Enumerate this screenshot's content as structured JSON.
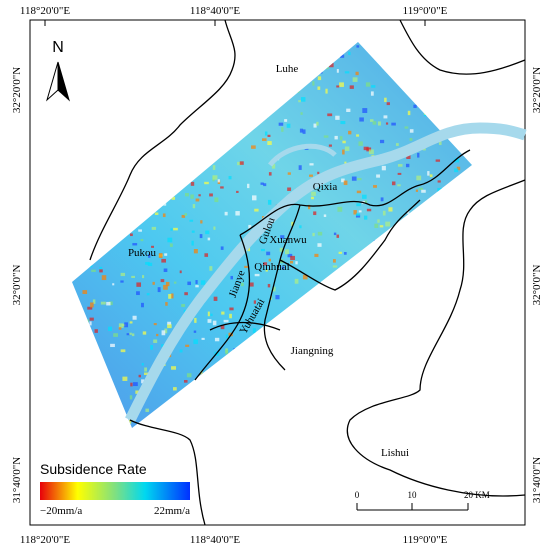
{
  "map": {
    "graticule": {
      "top": [
        "118°20'0\"E",
        "118°40'0\"E",
        "119°0'0\"E"
      ],
      "bottom": [
        "118°20'0\"E",
        "118°40'0\"E",
        "119°0'0\"E"
      ],
      "left": [
        "32°20'0\"N",
        "32°0'0\"N",
        "31°40'0\"N"
      ],
      "right": [
        "32°20'0\"N",
        "32°0'0\"N",
        "31°40'0\"N"
      ]
    },
    "districts": [
      "Luhe",
      "Qixia",
      "Xuanwu",
      "Qinhuai",
      "Pukou",
      "Jiangning",
      "Lishui",
      "Gulou",
      "Jianye",
      "Yuhuatai"
    ],
    "legend": {
      "title": "Subsidence Rate",
      "min_label": "−20mm/a",
      "max_label": "22mm/a"
    },
    "scale_bar": {
      "labels": [
        "0",
        "10",
        "20 KM"
      ]
    },
    "north_arrow": "N"
  }
}
